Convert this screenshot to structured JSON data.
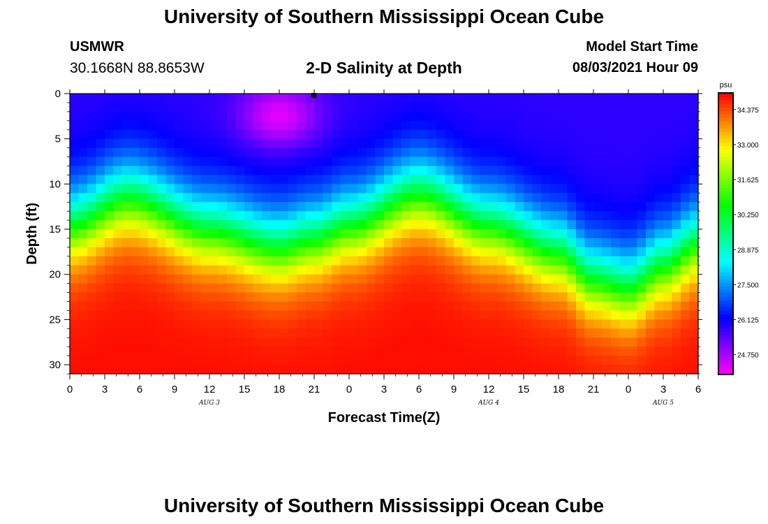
{
  "header": {
    "title": "University of Southern Mississippi Ocean Cube",
    "station_name": "USMWR",
    "coordinates": "30.1668N  88.8653W",
    "plot_title": "2-D Salinity at Depth",
    "model_start_label": "Model Start Time",
    "model_start_value": "08/03/2021 Hour 09"
  },
  "footer": {
    "title": "University of Southern Mississippi Ocean Cube"
  },
  "colors": {
    "background": "#ffffff",
    "current_time_marker": "#000000"
  },
  "chart_data": {
    "type": "heatmap",
    "title": "2-D Salinity at Depth",
    "xlabel": "Forecast Time(Z)",
    "ylabel": "Depth (ft)",
    "x_range_hours": [
      0,
      54
    ],
    "y_range_ft": [
      0,
      31
    ],
    "x_tick_hours": [
      0,
      3,
      6,
      9,
      12,
      15,
      18,
      21,
      24,
      27,
      30,
      33,
      36,
      39,
      42,
      45,
      48,
      51,
      54
    ],
    "x_tick_labels": [
      "0",
      "3",
      "6",
      "9",
      "12",
      "15",
      "18",
      "21",
      "0",
      "3",
      "6",
      "9",
      "12",
      "15",
      "18",
      "21",
      "0",
      "3",
      "6"
    ],
    "y_ticks": [
      0,
      5,
      10,
      15,
      20,
      25,
      30
    ],
    "y_tick_labels": [
      "0",
      "5",
      "10",
      "15",
      "20",
      "25",
      "30"
    ],
    "date_labels": [
      {
        "text": "AUG 3",
        "hour": 12
      },
      {
        "text": "AUG 4",
        "hour": 36
      },
      {
        "text": "AUG 5",
        "hour": 51
      }
    ],
    "current_time_hour": 21,
    "colorbar": {
      "unit": "psu",
      "min": 24.0,
      "max": 35.0,
      "tick_values": [
        34.375,
        33.0,
        31.625,
        30.25,
        28.875,
        27.5,
        26.125,
        24.75
      ],
      "tick_labels": [
        "34.375",
        "33.000",
        "31.625",
        "30.250",
        "28.875",
        "27.500",
        "26.125",
        "24.750"
      ]
    },
    "field_model": {
      "description": "Salinity (psu) vs forecast hour and depth; halocline depth varies with time",
      "surface_psu": 25.8,
      "bottom_psu": 34.9,
      "halocline_depth_keypoints_hours": [
        0,
        5,
        12,
        18,
        21,
        24,
        30,
        36,
        42,
        45,
        48,
        51,
        54
      ],
      "halocline_depth_keypoints_ft": [
        14.5,
        11.5,
        15.0,
        17.0,
        16.0,
        14.5,
        11.0,
        14.5,
        17.5,
        20.5,
        21.5,
        19.0,
        16.5
      ],
      "halocline_width_ft": 5.5,
      "surface_low_center_hour": 18,
      "surface_low_center_ft": 2.5,
      "surface_low_psu": 24.2,
      "grid_cols": 72,
      "grid_rows": 31
    }
  }
}
